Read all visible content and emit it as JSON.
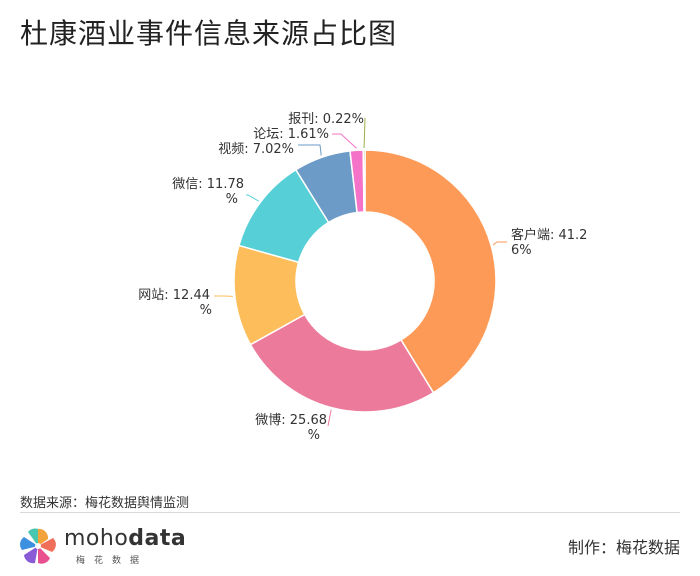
{
  "page": {
    "title": "杜康酒业事件信息来源占比图",
    "source": "数据来源：梅花数据舆情监测",
    "maker": "制作：梅花数据",
    "logo": {
      "word_light": "moho",
      "word_bold": "data",
      "sub": "梅花数据"
    }
  },
  "chart_data": {
    "type": "pie",
    "donut": true,
    "title": "杜康酒业事件信息来源占比图",
    "unit": "%",
    "slices": [
      {
        "name": "客户端",
        "value": 41.26,
        "label": [
          "客户端: 41.2",
          "6%"
        ],
        "color": "#fe9a57"
      },
      {
        "name": "微博",
        "value": 25.68,
        "label": [
          "微博: 25.68",
          "%"
        ],
        "color": "#ec7b9b"
      },
      {
        "name": "网站",
        "value": 12.44,
        "label": [
          "网站: 12.44",
          "%"
        ],
        "color": "#fdbd5b"
      },
      {
        "name": "微信",
        "value": 11.78,
        "label": [
          "微信: 11.78",
          "%"
        ],
        "color": "#56cfd6"
      },
      {
        "name": "视频",
        "value": 7.02,
        "label": [
          "视频: 7.02%"
        ],
        "color": "#6b9bc6"
      },
      {
        "name": "论坛",
        "value": 1.61,
        "label": [
          "论坛: 1.61%"
        ],
        "color": "#f472c7"
      },
      {
        "name": "报刊",
        "value": 0.22,
        "label": [
          "报刊: 0.22%"
        ],
        "color": "#9bb34a"
      }
    ]
  }
}
